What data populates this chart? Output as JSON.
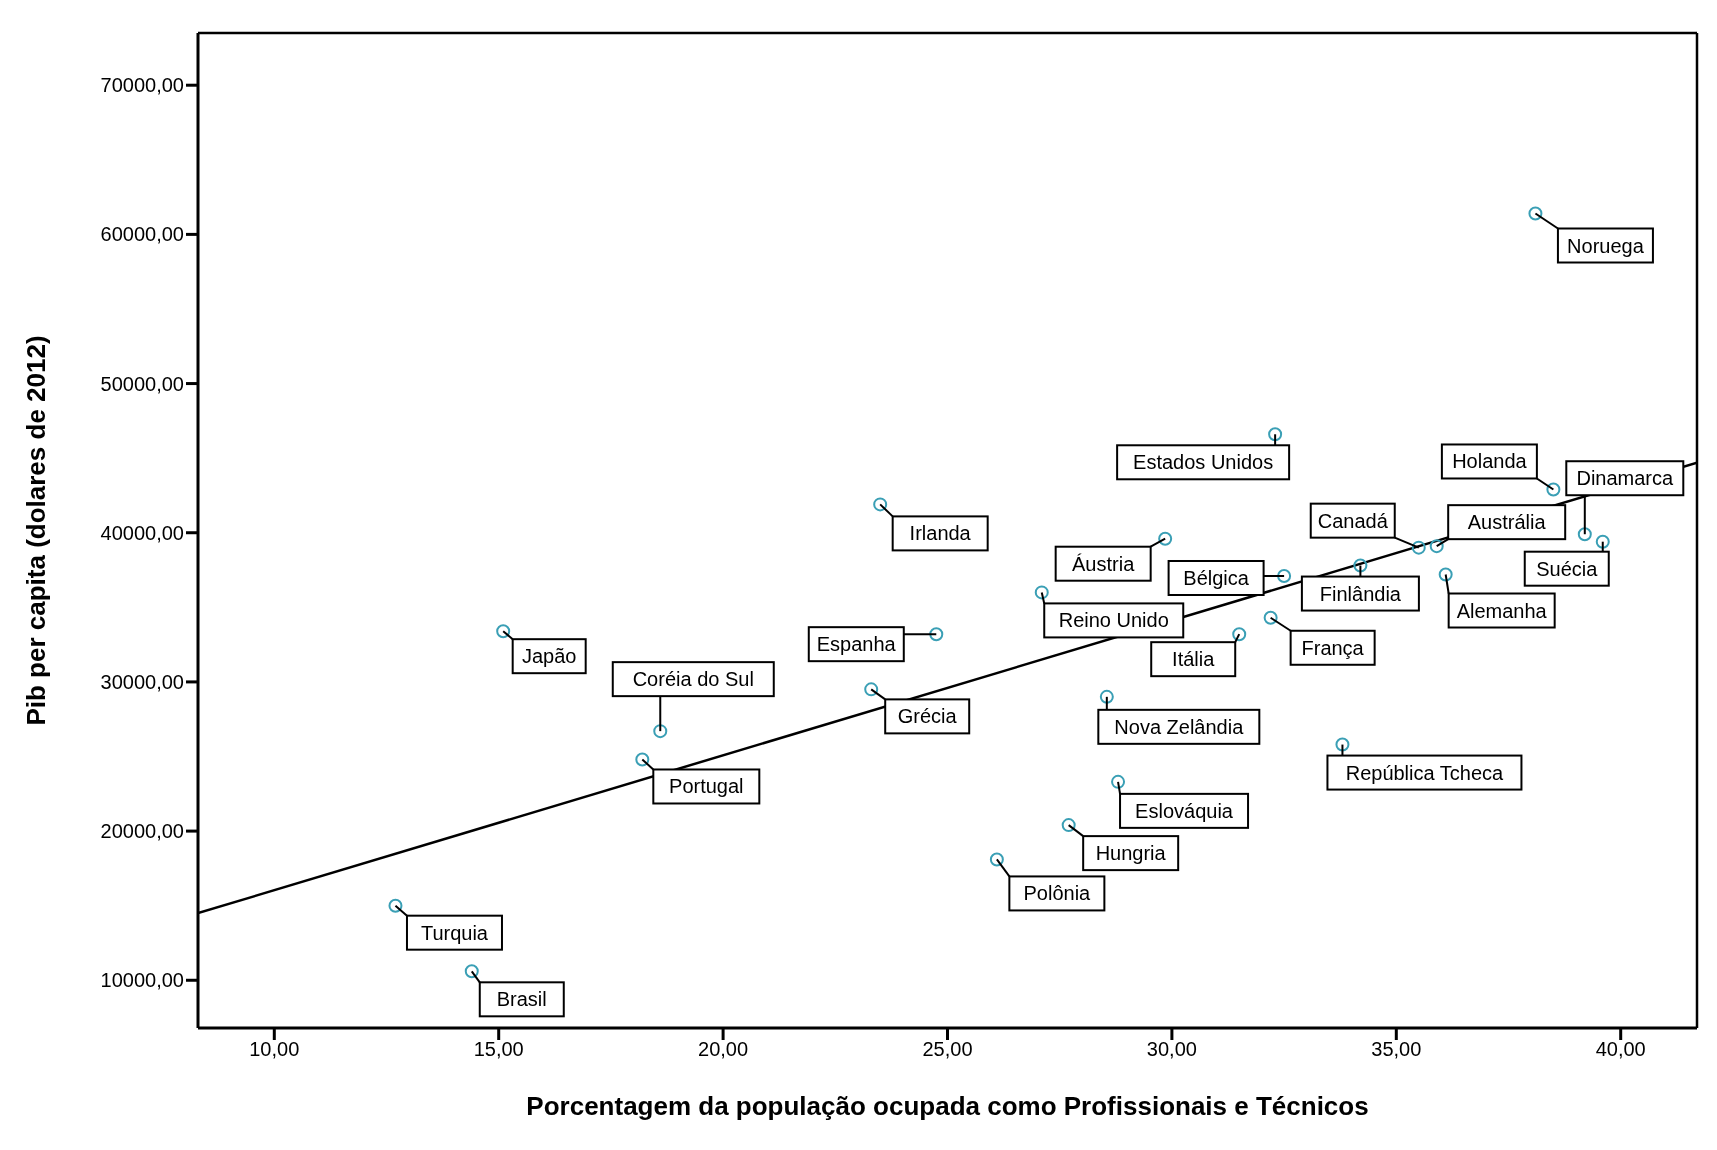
{
  "chart_data": {
    "type": "scatter",
    "xlabel": "Porcentagem da população ocupada como Profissionais e Técnicos",
    "ylabel": "Pib per capita (dolares de 2012)",
    "xlim": [
      8.3,
      41.7
    ],
    "ylim": [
      6800,
      73500
    ],
    "xticks": [
      {
        "value": 10,
        "label": "10,00"
      },
      {
        "value": 15,
        "label": "15,00"
      },
      {
        "value": 20,
        "label": "20,00"
      },
      {
        "value": 25,
        "label": "25,00"
      },
      {
        "value": 30,
        "label": "30,00"
      },
      {
        "value": 35,
        "label": "35,00"
      },
      {
        "value": 40,
        "label": "40,00"
      }
    ],
    "yticks": [
      {
        "value": 10000,
        "label": "10000,00"
      },
      {
        "value": 20000,
        "label": "20000,00"
      },
      {
        "value": 30000,
        "label": "30000,00"
      },
      {
        "value": 40000,
        "label": "40000,00"
      },
      {
        "value": 50000,
        "label": "50000,00"
      },
      {
        "value": 60000,
        "label": "60000,00"
      },
      {
        "value": 70000,
        "label": "70000,00"
      }
    ],
    "marker": "circle",
    "series": [
      {
        "color": "#3a9fb5",
        "x": [
          12.7,
          14.4,
          15.1,
          18.6,
          18.2,
          23.5,
          24.75,
          23.3,
          26.1,
          27.7,
          28.8,
          28.55,
          27.1,
          29.85,
          32.5,
          32.3,
          31.5,
          32.2,
          34.2,
          35.5,
          35.9,
          38.5,
          39.2,
          39.6,
          36.1,
          38.1,
          33.8
        ],
        "values": [
          15000,
          10600,
          33400,
          26700,
          24800,
          41900,
          33200,
          29500,
          18100,
          20400,
          23300,
          29000,
          36000,
          39600,
          37100,
          46600,
          33200,
          34300,
          37800,
          39000,
          39100,
          42900,
          39900,
          39400,
          37200,
          61400,
          25800
        ]
      },
      {
        "type": "line",
        "marker": "none",
        "color": "#000000",
        "x": [
          8.3,
          41.7
        ],
        "values": [
          14500,
          44700
        ]
      }
    ],
    "annotations": [
      {
        "text": "Turquia",
        "x": 12.7,
        "y": 15000
      },
      {
        "text": "Brasil",
        "x": 14.4,
        "y": 10600
      },
      {
        "text": "Japão",
        "x": 15.1,
        "y": 33400
      },
      {
        "text": "Coréia do Sul",
        "x": 18.6,
        "y": 26700
      },
      {
        "text": "Portugal",
        "x": 18.2,
        "y": 24800
      },
      {
        "text": "Irlanda",
        "x": 23.5,
        "y": 41900
      },
      {
        "text": "Espanha",
        "x": 24.75,
        "y": 33200
      },
      {
        "text": "Grécia",
        "x": 23.3,
        "y": 29500
      },
      {
        "text": "Polônia",
        "x": 26.1,
        "y": 18100
      },
      {
        "text": "Hungria",
        "x": 27.7,
        "y": 20400
      },
      {
        "text": "Eslováquia",
        "x": 28.8,
        "y": 23300
      },
      {
        "text": "Nova Zelândia",
        "x": 28.55,
        "y": 29000
      },
      {
        "text": "Reino Unido",
        "x": 27.1,
        "y": 36000
      },
      {
        "text": "Áustria",
        "x": 29.85,
        "y": 39600
      },
      {
        "text": "Bélgica",
        "x": 32.5,
        "y": 37100
      },
      {
        "text": "Estados Unidos",
        "x": 32.3,
        "y": 46600
      },
      {
        "text": "Itália",
        "x": 31.5,
        "y": 33200
      },
      {
        "text": "França",
        "x": 32.2,
        "y": 34300
      },
      {
        "text": "Finlândia",
        "x": 34.2,
        "y": 37800
      },
      {
        "text": "Canadá",
        "x": 35.5,
        "y": 39000
      },
      {
        "text": "Austrália",
        "x": 35.9,
        "y": 39100
      },
      {
        "text": "Holanda",
        "x": 38.5,
        "y": 42900
      },
      {
        "text": "Dinamarca",
        "x": 39.2,
        "y": 39900
      },
      {
        "text": "Suécia",
        "x": 39.6,
        "y": 39400
      },
      {
        "text": "Alemanha",
        "x": 36.1,
        "y": 37200
      },
      {
        "text": "Noruega",
        "x": 38.1,
        "y": 61400
      },
      {
        "text": "República Tcheca",
        "x": 33.8,
        "y": 25800
      }
    ]
  }
}
